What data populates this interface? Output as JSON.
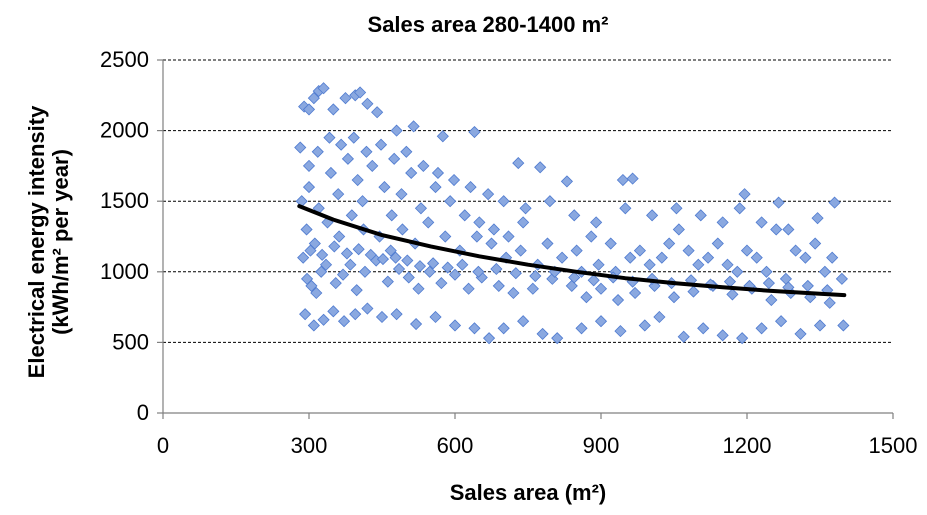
{
  "chart_data": {
    "type": "scatter",
    "title": "Sales area 280-1400 m²",
    "xlabel": "Sales area (m²)",
    "ylabel_line1": "Electrical energy intensity",
    "ylabel_line2": "(kWh/m² per year)",
    "xlim": [
      0,
      1500
    ],
    "ylim": [
      0,
      2500
    ],
    "x_ticks": [
      0,
      300,
      600,
      900,
      1200,
      1500
    ],
    "y_ticks": [
      0,
      500,
      1000,
      1500,
      2000,
      2500
    ],
    "grid": "horizontal-dashed",
    "marker_color": "#8aa8e0",
    "marker_edge_color": "#4f7bd0",
    "trend_color": "#000000",
    "series": [
      {
        "type": "scatter",
        "points": [
          [
            282,
            1880
          ],
          [
            290,
            2170
          ],
          [
            300,
            2150
          ],
          [
            310,
            2230
          ],
          [
            320,
            2280
          ],
          [
            330,
            2300
          ],
          [
            350,
            2150
          ],
          [
            375,
            2230
          ],
          [
            395,
            2250
          ],
          [
            405,
            2270
          ],
          [
            420,
            2190
          ],
          [
            440,
            2130
          ],
          [
            480,
            2000
          ],
          [
            515,
            2030
          ],
          [
            575,
            1960
          ],
          [
            640,
            1990
          ],
          [
            730,
            1770
          ],
          [
            775,
            1740
          ],
          [
            830,
            1640
          ],
          [
            945,
            1650
          ],
          [
            965,
            1660
          ],
          [
            1195,
            1550
          ],
          [
            1265,
            1490
          ],
          [
            1380,
            1490
          ],
          [
            285,
            1500
          ],
          [
            300,
            1600
          ],
          [
            320,
            1450
          ],
          [
            345,
            1700
          ],
          [
            360,
            1550
          ],
          [
            380,
            1800
          ],
          [
            400,
            1650
          ],
          [
            410,
            1500
          ],
          [
            430,
            1750
          ],
          [
            455,
            1600
          ],
          [
            470,
            1400
          ],
          [
            490,
            1550
          ],
          [
            510,
            1700
          ],
          [
            530,
            1450
          ],
          [
            560,
            1600
          ],
          [
            590,
            1500
          ],
          [
            620,
            1400
          ],
          [
            650,
            1350
          ],
          [
            680,
            1300
          ],
          [
            710,
            1250
          ],
          [
            740,
            1350
          ],
          [
            790,
            1200
          ],
          [
            850,
            1150
          ],
          [
            880,
            1250
          ],
          [
            920,
            1200
          ],
          [
            960,
            1100
          ],
          [
            1000,
            1050
          ],
          [
            1040,
            1200
          ],
          [
            1080,
            1150
          ],
          [
            1120,
            1100
          ],
          [
            1160,
            1050
          ],
          [
            1200,
            1150
          ],
          [
            1240,
            1000
          ],
          [
            1280,
            950
          ],
          [
            1320,
            1100
          ],
          [
            1360,
            1000
          ],
          [
            1395,
            950
          ],
          [
            288,
            1100
          ],
          [
            296,
            950
          ],
          [
            305,
            900
          ],
          [
            315,
            850
          ],
          [
            325,
            1000
          ],
          [
            335,
            1050
          ],
          [
            355,
            920
          ],
          [
            370,
            980
          ],
          [
            385,
            1050
          ],
          [
            398,
            870
          ],
          [
            415,
            1000
          ],
          [
            438,
            1080
          ],
          [
            462,
            930
          ],
          [
            485,
            1020
          ],
          [
            505,
            960
          ],
          [
            525,
            880
          ],
          [
            548,
            1000
          ],
          [
            572,
            920
          ],
          [
            600,
            980
          ],
          [
            628,
            880
          ],
          [
            655,
            960
          ],
          [
            690,
            900
          ],
          [
            720,
            850
          ],
          [
            760,
            880
          ],
          [
            800,
            950
          ],
          [
            840,
            900
          ],
          [
            870,
            820
          ],
          [
            900,
            880
          ],
          [
            935,
            800
          ],
          [
            970,
            850
          ],
          [
            1010,
            900
          ],
          [
            1050,
            820
          ],
          [
            1090,
            860
          ],
          [
            1130,
            900
          ],
          [
            1170,
            840
          ],
          [
            1210,
            880
          ],
          [
            1250,
            800
          ],
          [
            1290,
            850
          ],
          [
            1330,
            820
          ],
          [
            1370,
            780
          ],
          [
            292,
            700
          ],
          [
            310,
            620
          ],
          [
            330,
            660
          ],
          [
            350,
            720
          ],
          [
            372,
            650
          ],
          [
            395,
            700
          ],
          [
            420,
            740
          ],
          [
            450,
            680
          ],
          [
            480,
            700
          ],
          [
            520,
            630
          ],
          [
            560,
            680
          ],
          [
            600,
            620
          ],
          [
            640,
            600
          ],
          [
            670,
            530
          ],
          [
            700,
            600
          ],
          [
            740,
            650
          ],
          [
            780,
            560
          ],
          [
            810,
            530
          ],
          [
            860,
            600
          ],
          [
            900,
            650
          ],
          [
            940,
            580
          ],
          [
            990,
            620
          ],
          [
            1020,
            680
          ],
          [
            1070,
            540
          ],
          [
            1110,
            600
          ],
          [
            1150,
            550
          ],
          [
            1190,
            530
          ],
          [
            1230,
            600
          ],
          [
            1270,
            650
          ],
          [
            1310,
            560
          ],
          [
            1350,
            620
          ],
          [
            1398,
            620
          ],
          [
            295,
            1300
          ],
          [
            312,
            1200
          ],
          [
            338,
            1350
          ],
          [
            362,
            1250
          ],
          [
            388,
            1400
          ],
          [
            412,
            1300
          ],
          [
            445,
            1250
          ],
          [
            468,
            1150
          ],
          [
            492,
            1300
          ],
          [
            518,
            1200
          ],
          [
            545,
            1350
          ],
          [
            580,
            1250
          ],
          [
            610,
            1150
          ],
          [
            645,
            1250
          ],
          [
            675,
            1200
          ],
          [
            705,
            1100
          ],
          [
            735,
            1150
          ],
          [
            770,
            1050
          ],
          [
            820,
            1100
          ],
          [
            860,
            1000
          ],
          [
            895,
            1050
          ],
          [
            930,
            1000
          ],
          [
            980,
            1150
          ],
          [
            1025,
            1100
          ],
          [
            1060,
            1300
          ],
          [
            1100,
            1050
          ],
          [
            1140,
            1200
          ],
          [
            1180,
            1000
          ],
          [
            1220,
            1100
          ],
          [
            1260,
            1300
          ],
          [
            1300,
            1150
          ],
          [
            1340,
            1200
          ],
          [
            1375,
            1100
          ],
          [
            300,
            1750
          ],
          [
            318,
            1850
          ],
          [
            342,
            1950
          ],
          [
            366,
            1900
          ],
          [
            392,
            1950
          ],
          [
            418,
            1850
          ],
          [
            448,
            1900
          ],
          [
            475,
            1800
          ],
          [
            500,
            1850
          ],
          [
            535,
            1750
          ],
          [
            565,
            1700
          ],
          [
            598,
            1650
          ],
          [
            632,
            1600
          ],
          [
            668,
            1550
          ],
          [
            700,
            1500
          ],
          [
            745,
            1450
          ],
          [
            795,
            1500
          ],
          [
            845,
            1400
          ],
          [
            890,
            1350
          ],
          [
            950,
            1450
          ],
          [
            1005,
            1400
          ],
          [
            1055,
            1450
          ],
          [
            1105,
            1400
          ],
          [
            1150,
            1350
          ],
          [
            1185,
            1450
          ],
          [
            1230,
            1350
          ],
          [
            1285,
            1300
          ],
          [
            1345,
            1380
          ],
          [
            303,
            1150
          ],
          [
            327,
            1120
          ],
          [
            352,
            1180
          ],
          [
            378,
            1130
          ],
          [
            402,
            1160
          ],
          [
            427,
            1120
          ],
          [
            452,
            1090
          ],
          [
            478,
            1100
          ],
          [
            502,
            1080
          ],
          [
            528,
            1040
          ],
          [
            555,
            1060
          ],
          [
            585,
            1030
          ],
          [
            615,
            1050
          ],
          [
            648,
            1000
          ],
          [
            685,
            1020
          ],
          [
            725,
            990
          ],
          [
            765,
            970
          ],
          [
            805,
            1000
          ],
          [
            845,
            960
          ],
          [
            885,
            940
          ],
          [
            925,
            960
          ],
          [
            965,
            930
          ],
          [
            1005,
            950
          ],
          [
            1045,
            920
          ],
          [
            1085,
            940
          ],
          [
            1125,
            910
          ],
          [
            1165,
            930
          ],
          [
            1205,
            900
          ],
          [
            1245,
            920
          ],
          [
            1285,
            890
          ],
          [
            1325,
            900
          ],
          [
            1365,
            870
          ]
        ]
      },
      {
        "type": "line",
        "name": "",
        "points": [
          [
            280,
            1465
          ],
          [
            350,
            1370
          ],
          [
            450,
            1260
          ],
          [
            550,
            1180
          ],
          [
            650,
            1110
          ],
          [
            750,
            1050
          ],
          [
            850,
            1000
          ],
          [
            950,
            955
          ],
          [
            1050,
            920
          ],
          [
            1150,
            890
          ],
          [
            1250,
            865
          ],
          [
            1350,
            845
          ],
          [
            1400,
            835
          ]
        ]
      }
    ]
  }
}
